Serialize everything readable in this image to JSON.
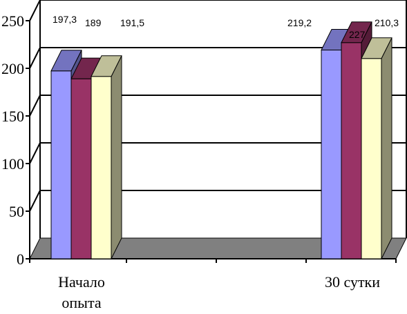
{
  "chart_data": {
    "type": "bar",
    "three_d": true,
    "categories": [
      "Начало опыта",
      "30 сутки"
    ],
    "category_lines": [
      [
        "Начало",
        "опыта"
      ],
      [
        "30 сутки"
      ]
    ],
    "series": [
      {
        "values": [
          197.3,
          219.2
        ],
        "color": "#9999ff"
      },
      {
        "values": [
          189,
          227
        ],
        "color": "#993366"
      },
      {
        "values": [
          191.5,
          210.3
        ],
        "color": "#ffffcc"
      }
    ],
    "data_labels": [
      [
        "197,3",
        "219,2"
      ],
      [
        "189",
        "227"
      ],
      [
        "191,5",
        "210,3"
      ]
    ],
    "y_ticks": [
      "0",
      "50",
      "100",
      "150",
      "200",
      "250"
    ],
    "ylim": [
      0,
      250
    ],
    "grid": true,
    "legend": "none",
    "floor_color": "#808080",
    "title": "",
    "xlabel": "",
    "ylabel": ""
  }
}
